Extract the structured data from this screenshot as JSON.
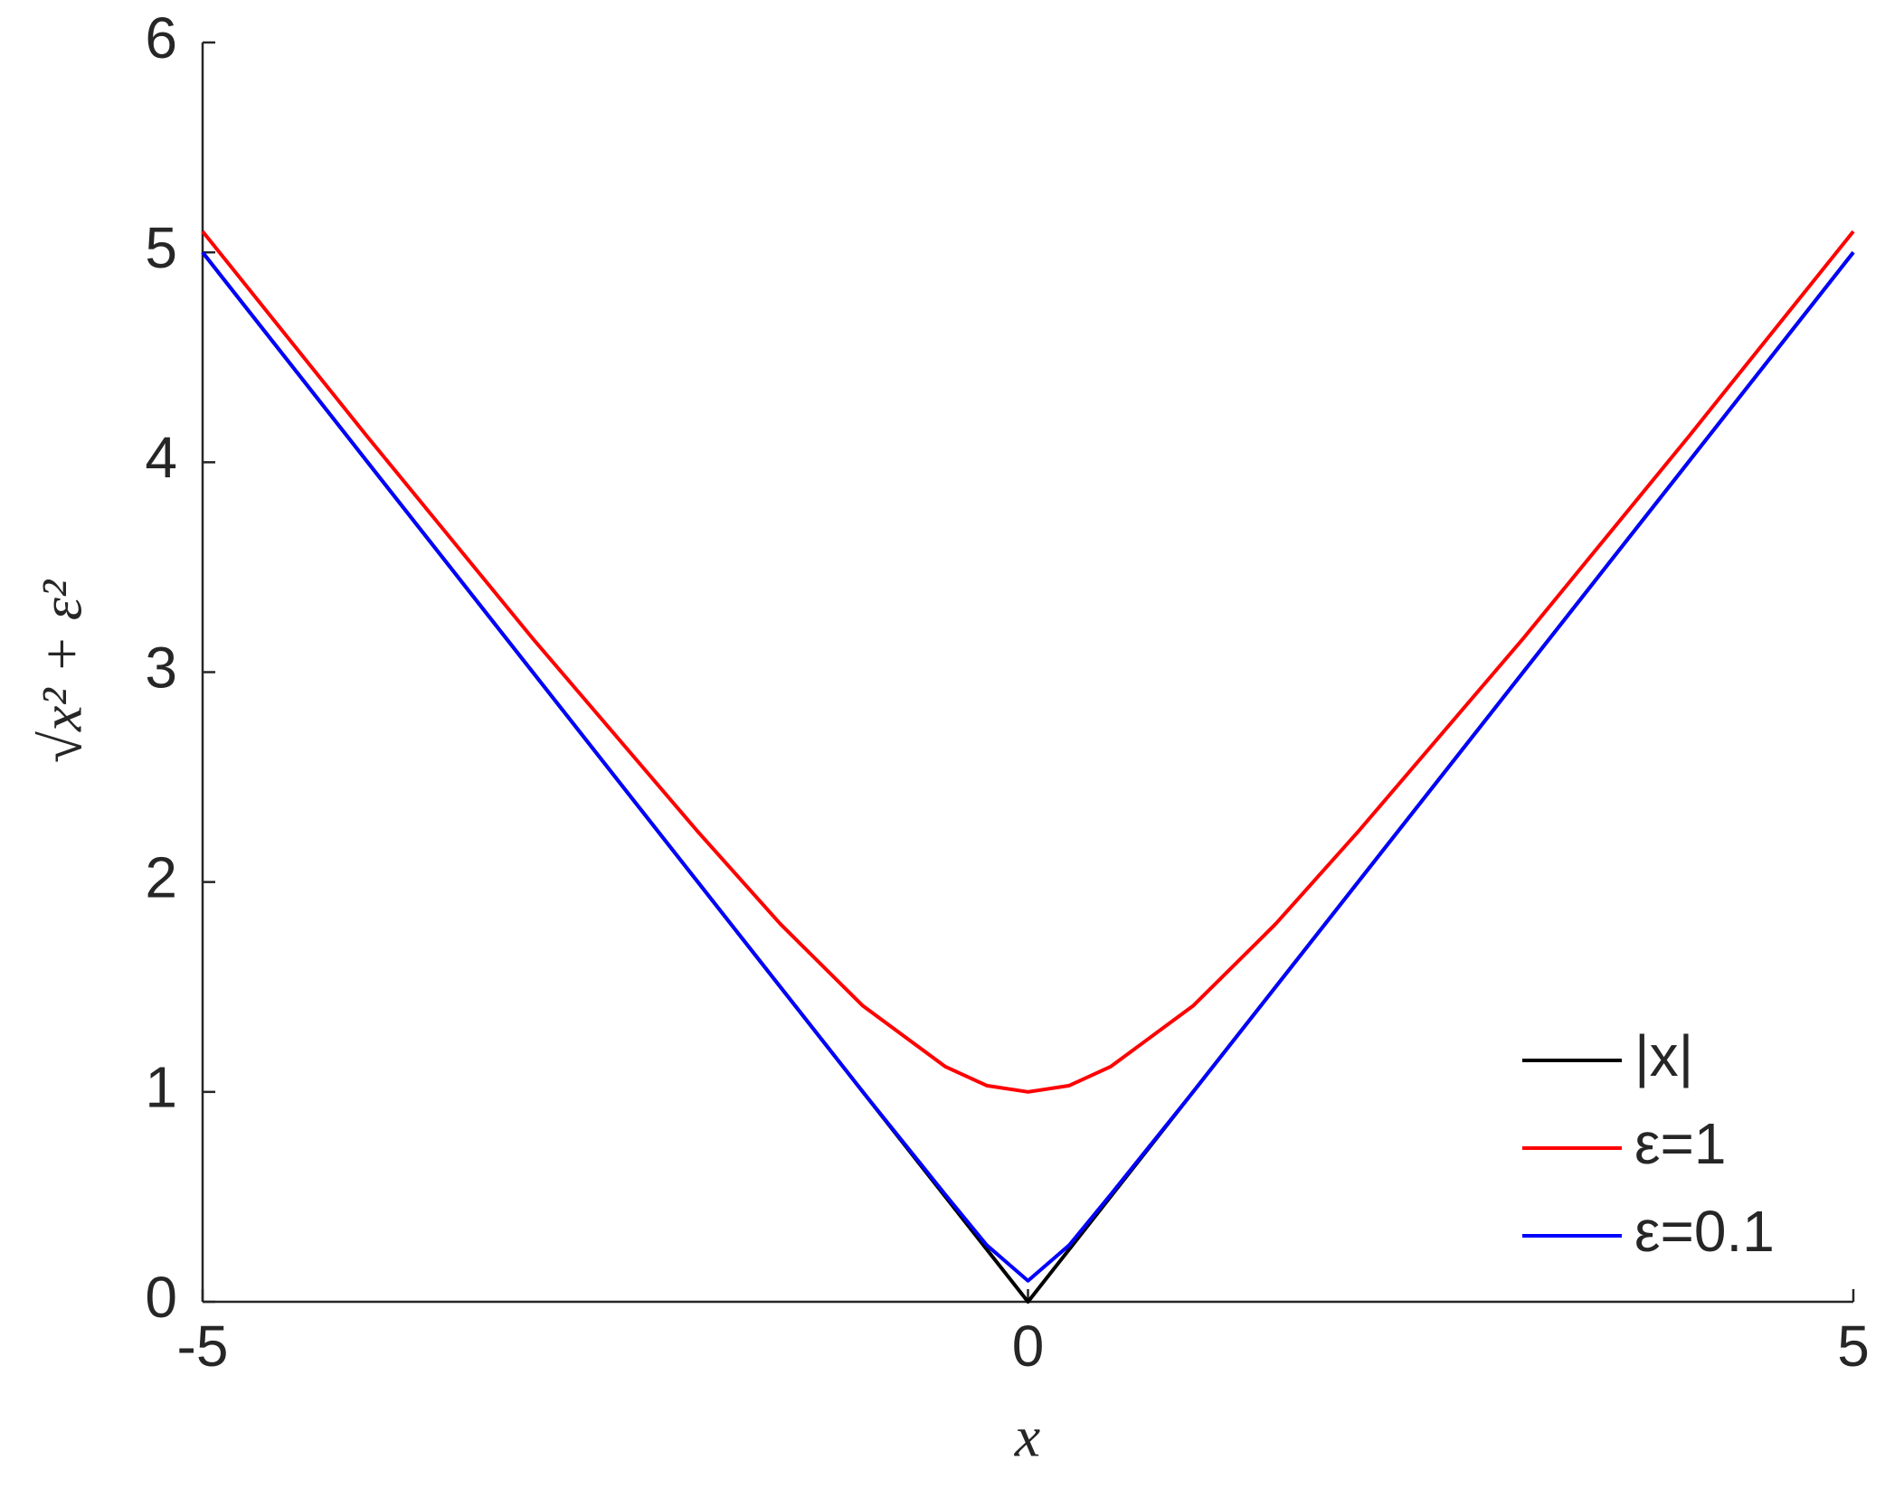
{
  "chart_data": {
    "type": "line",
    "xlabel": "x",
    "ylabel": "√x² + ε²",
    "x": [
      -5,
      -4,
      -3,
      -2,
      -1.5,
      -1,
      -0.5,
      -0.25,
      0,
      0.25,
      0.5,
      1,
      1.5,
      2,
      3,
      4,
      5
    ],
    "series": [
      {
        "name": "|x|",
        "color": "#000000",
        "values": [
          5,
          4,
          3,
          2,
          1.5,
          1,
          0.5,
          0.25,
          0,
          0.25,
          0.5,
          1,
          1.5,
          2,
          3,
          4,
          5
        ]
      },
      {
        "name": "ε=1",
        "color": "#ff0000",
        "values": [
          5.1,
          4.12,
          3.16,
          2.24,
          1.8,
          1.41,
          1.12,
          1.03,
          1,
          1.03,
          1.12,
          1.41,
          1.8,
          2.24,
          3.16,
          4.12,
          5.1
        ]
      },
      {
        "name": "ε=0.1",
        "color": "#0000ff",
        "values": [
          5.0,
          4.0,
          3.0,
          2.0,
          1.5,
          1.0,
          0.51,
          0.27,
          0.1,
          0.27,
          0.51,
          1.0,
          1.5,
          2.0,
          3.0,
          4.0,
          5.0
        ]
      }
    ],
    "xlim": [
      -5,
      5
    ],
    "xticks": [
      -5,
      0,
      5
    ],
    "ylim": [
      0,
      6
    ],
    "yticks": [
      0,
      1,
      2,
      3,
      4,
      5,
      6
    ],
    "grid": false,
    "legend": "lower right"
  }
}
